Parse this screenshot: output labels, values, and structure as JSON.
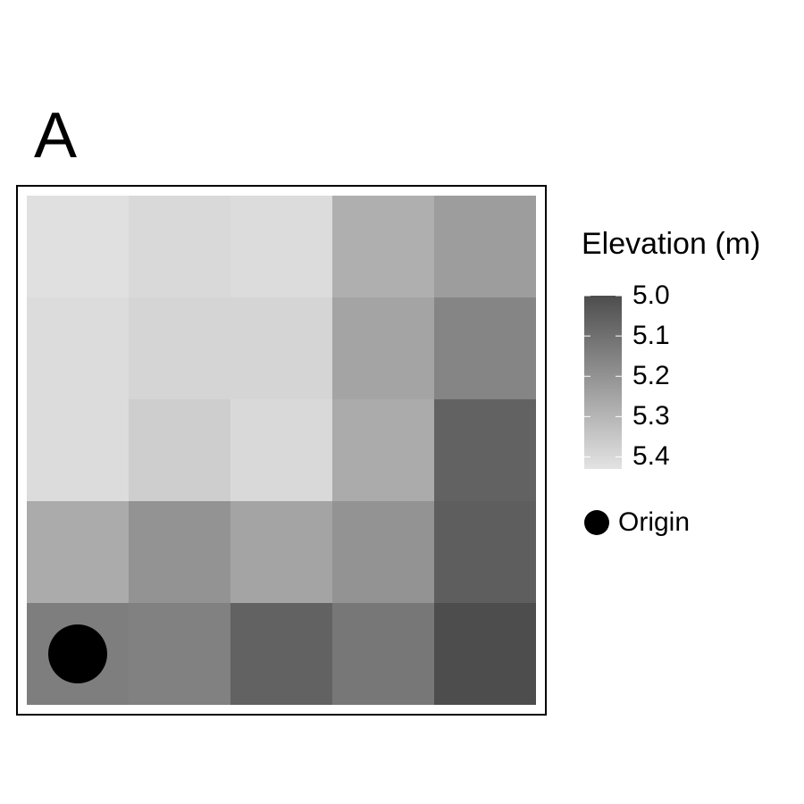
{
  "panel_label": "A",
  "chart_data": {
    "type": "heatmap",
    "title": "",
    "rows": 5,
    "cols": 5,
    "values": [
      [
        5.42,
        5.4,
        5.41,
        5.28,
        5.23
      ],
      [
        5.41,
        5.39,
        5.39,
        5.25,
        5.16
      ],
      [
        5.41,
        5.37,
        5.4,
        5.27,
        5.06
      ],
      [
        5.27,
        5.2,
        5.25,
        5.2,
        5.05
      ],
      [
        5.14,
        5.15,
        5.06,
        5.12,
        5.0
      ]
    ],
    "legend": {
      "title": "Elevation (m)",
      "ticks": [
        "5.0",
        "5.1",
        "5.2",
        "5.3",
        "5.4"
      ],
      "range": [
        5.0,
        5.43
      ],
      "color_low_value": "#4d4d4d",
      "color_high_value": "#e3e3e3"
    },
    "points": [
      {
        "label": "Origin",
        "row": 4,
        "col": 0,
        "color": "#000000"
      }
    ]
  }
}
